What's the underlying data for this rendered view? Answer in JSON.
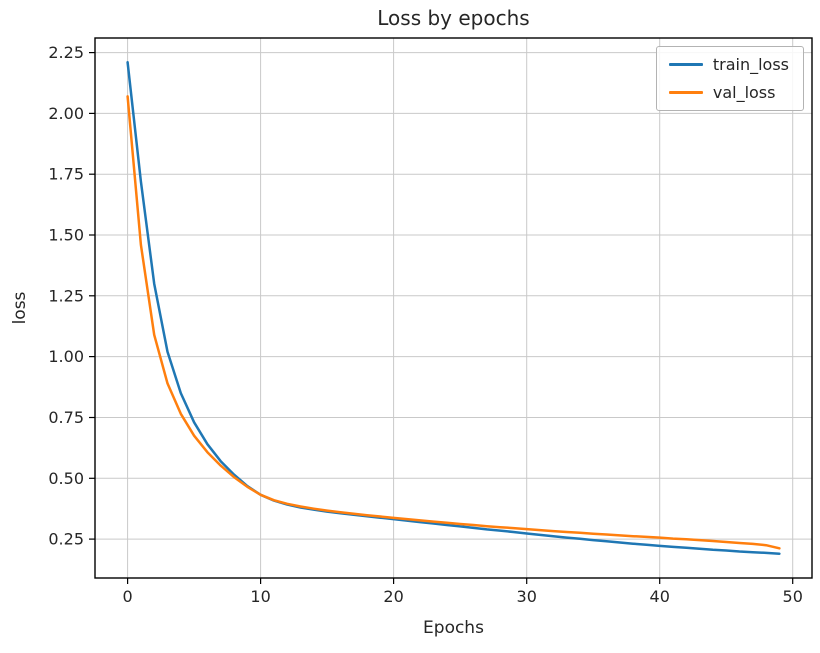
{
  "figure": {
    "title": "Loss by epochs",
    "xlabel": "Epochs",
    "ylabel": "loss"
  },
  "chart_data": {
    "type": "line",
    "title": "Loss by epochs",
    "xlabel": "Epochs",
    "ylabel": "loss",
    "grid": true,
    "legend_position": "upper right",
    "xlim": [
      -2.45,
      51.45
    ],
    "ylim": [
      0.09,
      2.31
    ],
    "xticks": [
      0,
      10,
      20,
      30,
      40,
      50
    ],
    "yticks": [
      0.25,
      0.5,
      0.75,
      1.0,
      1.25,
      1.5,
      1.75,
      2.0,
      2.25
    ],
    "x": [
      0,
      1,
      2,
      3,
      4,
      5,
      6,
      7,
      8,
      9,
      10,
      11,
      12,
      13,
      14,
      15,
      16,
      17,
      18,
      19,
      20,
      21,
      22,
      23,
      24,
      25,
      26,
      27,
      28,
      29,
      30,
      31,
      32,
      33,
      34,
      35,
      36,
      37,
      38,
      39,
      40,
      41,
      42,
      43,
      44,
      45,
      46,
      47,
      48,
      49
    ],
    "series": [
      {
        "name": "train_loss",
        "color": "#1f77b4",
        "values": [
          2.21,
          1.72,
          1.3,
          1.02,
          0.85,
          0.73,
          0.64,
          0.57,
          0.515,
          0.468,
          0.432,
          0.408,
          0.392,
          0.38,
          0.371,
          0.363,
          0.356,
          0.35,
          0.344,
          0.338,
          0.332,
          0.326,
          0.32,
          0.314,
          0.308,
          0.302,
          0.296,
          0.29,
          0.285,
          0.279,
          0.273,
          0.267,
          0.262,
          0.256,
          0.251,
          0.246,
          0.241,
          0.236,
          0.231,
          0.227,
          0.222,
          0.218,
          0.214,
          0.21,
          0.206,
          0.203,
          0.199,
          0.196,
          0.193,
          0.19
        ]
      },
      {
        "name": "val_loss",
        "color": "#ff7f0e",
        "values": [
          2.07,
          1.46,
          1.09,
          0.89,
          0.765,
          0.675,
          0.607,
          0.552,
          0.505,
          0.465,
          0.432,
          0.41,
          0.395,
          0.384,
          0.375,
          0.367,
          0.36,
          0.354,
          0.348,
          0.343,
          0.337,
          0.332,
          0.327,
          0.322,
          0.317,
          0.312,
          0.308,
          0.303,
          0.299,
          0.295,
          0.291,
          0.287,
          0.283,
          0.279,
          0.276,
          0.272,
          0.269,
          0.265,
          0.262,
          0.259,
          0.256,
          0.252,
          0.249,
          0.246,
          0.242,
          0.238,
          0.234,
          0.23,
          0.225,
          0.212
        ]
      }
    ]
  },
  "style": {
    "grid_color": "#c9c9c9",
    "spine_color": "#000000",
    "tick_color": "#000000"
  }
}
